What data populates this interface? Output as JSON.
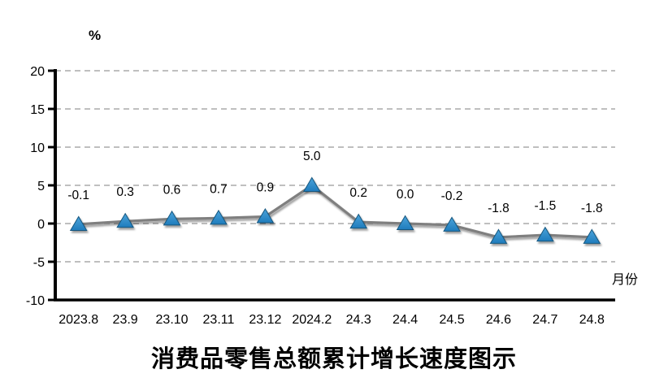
{
  "chart_data": {
    "type": "line",
    "title": "消费品零售总额累计增长速度图示",
    "y_unit_label": "%",
    "x_axis_label": "月份",
    "categories": [
      "2023.8",
      "23.9",
      "23.10",
      "23.11",
      "23.12",
      "2024.2",
      "24.3",
      "24.4",
      "24.5",
      "24.6",
      "24.7",
      "24.8"
    ],
    "series": [
      {
        "values": [
          -0.1,
          0.3,
          0.6,
          0.7,
          0.9,
          5.0,
          0.2,
          0.0,
          -0.2,
          -1.8,
          -1.5,
          -1.8
        ],
        "data_labels": [
          "-0.1",
          "0.3",
          "0.6",
          "0.7",
          "0.9",
          "5.0",
          "0.2",
          "0.0",
          "-0.2",
          "-1.8",
          "-1.5",
          "-1.8"
        ]
      }
    ],
    "ylim": [
      -10,
      20
    ],
    "y_ticks": [
      20,
      15,
      10,
      5,
      0,
      -5,
      -10
    ],
    "grid": "horizontal-dashed",
    "legend": "none",
    "marker": "triangle",
    "colors": {
      "line": "#7F7F7F",
      "marker_fill": "#1F7CBC",
      "marker_fill_light": "#4BA3DA",
      "marker_stroke": "#16577F",
      "gridline": "#999999",
      "axis": "#000000",
      "text": "#000000"
    }
  }
}
